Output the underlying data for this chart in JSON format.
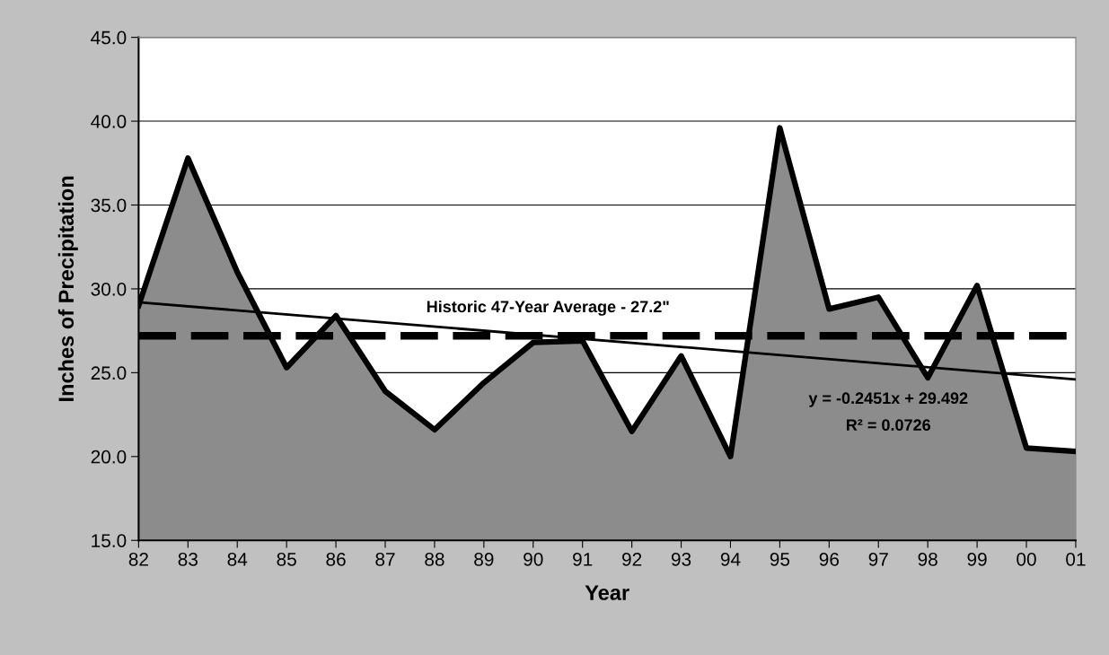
{
  "chart_data": {
    "type": "area",
    "xlabel": "Year",
    "ylabel": "Inches of Precipitation",
    "categories": [
      "82",
      "83",
      "84",
      "85",
      "86",
      "87",
      "88",
      "89",
      "90",
      "91",
      "92",
      "93",
      "94",
      "95",
      "96",
      "97",
      "98",
      "99",
      "00",
      "01"
    ],
    "series": [
      {
        "color": "#8c8c8c",
        "values": [
          29.0,
          37.8,
          31.0,
          25.3,
          28.4,
          23.9,
          21.6,
          24.4,
          26.8,
          26.9,
          21.5,
          26.0,
          20.0,
          39.6,
          28.8,
          29.5,
          24.7,
          30.2,
          20.5,
          20.3
        ]
      },
      {
        "type": "line",
        "color": "#000000",
        "x": [
          "82",
          "01"
        ],
        "values": [
          29.2,
          24.6
        ]
      }
    ],
    "ylim": [
      15,
      45
    ],
    "yticks": [
      {
        "value": 15,
        "label": "15.0"
      },
      {
        "value": 20,
        "label": "20.0"
      },
      {
        "value": 25,
        "label": "25.0"
      },
      {
        "value": 30,
        "label": "30.0"
      },
      {
        "value": 35,
        "label": "35.0"
      },
      {
        "value": 40,
        "label": "40.0"
      },
      {
        "value": 45,
        "label": "45.0"
      }
    ],
    "grid": "y",
    "ref_lines": [
      {
        "axis": "y",
        "value": 27.2,
        "label": "Historic 47-Year Average - 27.2\"",
        "color": "#000000",
        "line_style": "dashed"
      }
    ],
    "annotations": [
      "y = -0.2451x + 29.492",
      "R² = 0.0726"
    ]
  }
}
